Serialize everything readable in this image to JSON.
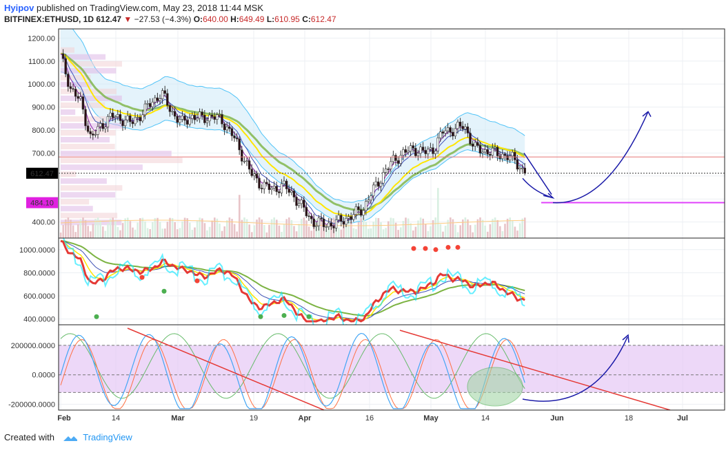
{
  "header": {
    "author": "Hyipov",
    "published_text": "published on TradingView.com, May 23, 2018 11:44 MSK",
    "symbol_line": "BITFINEX:ETHUSD, 1D",
    "last": "612.47",
    "change_arrow": "▼",
    "change": "−27.53 (−4.3%)",
    "o_label": "O:",
    "o": "640.00",
    "h_label": "H:",
    "h": "649.49",
    "l_label": "L:",
    "l": "610.95",
    "c_label": "C:",
    "c": "612.47"
  },
  "footer": {
    "created_with": "Created with",
    "brand": "TradingView"
  },
  "colors": {
    "up": "#d9efe2",
    "down": "#e8c4c8",
    "candle_up": "#ffffff",
    "candle_down": "#2b0f14",
    "bb": "#4fc3f7",
    "ema_yellow": "#ffe600",
    "ema_green": "#7cb342",
    "ema_purple": "#8e24aa",
    "stoch_fill": "#e6c8f5",
    "trendline": "#e53935",
    "arrow": "#1a1aa8",
    "support": "#e040fb",
    "resistance": "#e57373"
  },
  "chart_data": [
    {
      "type": "candlestick",
      "panel": "price",
      "y_ticks": [
        "1200.00",
        "1100.00",
        "1000.00",
        "900.00",
        "800.00",
        "700.00",
        "400.00"
      ],
      "ylim": [
        330,
        1240
      ],
      "x_ticks": [
        "Feb",
        "14",
        "Mar",
        "19",
        "Apr",
        "16",
        "May",
        "14",
        "Jun",
        "18",
        "Jul"
      ],
      "last_price_label": "612.47",
      "support_label": "484.10",
      "close_series_approx": [
        1120,
        980,
        920,
        760,
        820,
        860,
        850,
        830,
        870,
        920,
        960,
        880,
        830,
        860,
        850,
        860,
        840,
        780,
        690,
        600,
        560,
        540,
        560,
        520,
        460,
        400,
        390,
        390,
        410,
        430,
        460,
        540,
        610,
        670,
        700,
        720,
        700,
        720,
        800,
        800,
        820,
        720,
        710,
        700,
        690,
        670,
        612
      ]
    },
    {
      "type": "line",
      "panel": "oscillator",
      "y_ticks": [
        "1000.0000",
        "800.0000",
        "600.0000",
        "400.0000"
      ],
      "ylim": [
        350,
        1100
      ]
    },
    {
      "type": "line",
      "panel": "stochastic",
      "y_ticks": [
        "200000.0000",
        "0.0000",
        "-200000.0000"
      ],
      "ylim": [
        -240000,
        340000
      ]
    }
  ]
}
